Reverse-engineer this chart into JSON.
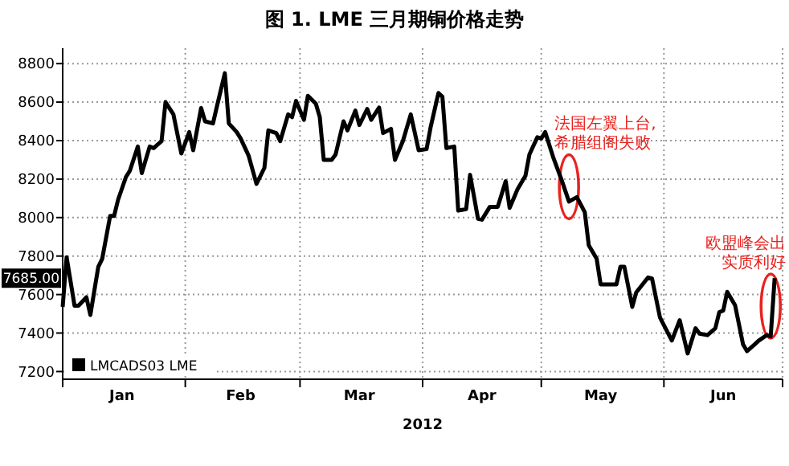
{
  "chart_data": {
    "type": "line",
    "title": "图 1. LME 三月期铜价格走势",
    "xlabel": "2012",
    "xlim": [
      "2012-01-01",
      "2012-07-01"
    ],
    "xticks": [
      {
        "value": "2012-01-01",
        "label": null
      },
      {
        "value": "2012-01-16",
        "label": "Jan"
      },
      {
        "value": "2012-02-01",
        "label": null
      },
      {
        "value": "2012-02-15",
        "label": "Feb"
      },
      {
        "value": "2012-03-01",
        "label": null
      },
      {
        "value": "2012-03-16",
        "label": "Mar"
      },
      {
        "value": "2012-04-01",
        "label": null
      },
      {
        "value": "2012-04-16",
        "label": "Apr"
      },
      {
        "value": "2012-05-01",
        "label": null
      },
      {
        "value": "2012-05-16",
        "label": "May"
      },
      {
        "value": "2012-06-01",
        "label": null
      },
      {
        "value": "2012-06-16",
        "label": "Jun"
      },
      {
        "value": "2012-07-01",
        "label": null
      }
    ],
    "ylim": [
      7160,
      8880
    ],
    "yticks": [
      7200,
      7400,
      7600,
      7800,
      8000,
      8200,
      8400,
      8600,
      8800
    ],
    "grid": true,
    "legend": "bottom left",
    "line_style": "solid",
    "marker": "none",
    "x": [
      "2012-01-01",
      "2012-01-02",
      "2012-01-04",
      "2012-01-05",
      "2012-01-07",
      "2012-01-08",
      "2012-01-10",
      "2012-01-11",
      "2012-01-13",
      "2012-01-14",
      "2012-01-15",
      "2012-01-17",
      "2012-01-18",
      "2012-01-20",
      "2012-01-21",
      "2012-01-23",
      "2012-01-24",
      "2012-01-26",
      "2012-01-27",
      "2012-01-29",
      "2012-01-31",
      "2012-02-02",
      "2012-02-03",
      "2012-02-05",
      "2012-02-06",
      "2012-02-08",
      "2012-02-09",
      "2012-02-11",
      "2012-02-12",
      "2012-02-14",
      "2012-02-15",
      "2012-02-17",
      "2012-02-19",
      "2012-02-21",
      "2012-02-22",
      "2012-02-24",
      "2012-02-25",
      "2012-02-27",
      "2012-02-28",
      "2012-02-29",
      "2012-03-02",
      "2012-03-03",
      "2012-03-05",
      "2012-03-06",
      "2012-03-07",
      "2012-03-09",
      "2012-03-10",
      "2012-03-12",
      "2012-03-13",
      "2012-03-15",
      "2012-03-16",
      "2012-03-18",
      "2012-03-19",
      "2012-03-21",
      "2012-03-22",
      "2012-03-24",
      "2012-03-25",
      "2012-03-27",
      "2012-03-29",
      "2012-03-31",
      "2012-04-02",
      "2012-04-03",
      "2012-04-05",
      "2012-04-06",
      "2012-04-07",
      "2012-04-09",
      "2012-04-10",
      "2012-04-12",
      "2012-04-13",
      "2012-04-15",
      "2012-04-16",
      "2012-04-18",
      "2012-04-20",
      "2012-04-22",
      "2012-04-23",
      "2012-04-25",
      "2012-04-27",
      "2012-04-28",
      "2012-04-30",
      "2012-05-01",
      "2012-05-02",
      "2012-05-04",
      "2012-05-06",
      "2012-05-08",
      "2012-05-10",
      "2012-05-12",
      "2012-05-13",
      "2012-05-15",
      "2012-05-16",
      "2012-05-20",
      "2012-05-21",
      "2012-05-22",
      "2012-05-24",
      "2012-05-25",
      "2012-05-28",
      "2012-05-29",
      "2012-05-31",
      "2012-06-03",
      "2012-06-05",
      "2012-06-07",
      "2012-06-09",
      "2012-06-10",
      "2012-06-12",
      "2012-06-14",
      "2012-06-15",
      "2012-06-16",
      "2012-06-17",
      "2012-06-19",
      "2012-06-21",
      "2012-06-22",
      "2012-06-24",
      "2012-06-25",
      "2012-06-27",
      "2012-06-28",
      "2012-06-29"
    ],
    "series": [
      {
        "name": "LMCADS03 LME",
        "color": "#000000",
        "values": [
          7536,
          7794,
          7542,
          7542,
          7586,
          7494,
          7744,
          7786,
          8008,
          8008,
          8092,
          8211,
          8244,
          8369,
          8231,
          8369,
          8361,
          8397,
          8600,
          8536,
          8333,
          8444,
          8350,
          8569,
          8500,
          8489,
          8578,
          8750,
          8489,
          8444,
          8411,
          8322,
          8175,
          8258,
          8453,
          8439,
          8397,
          8536,
          8522,
          8606,
          8508,
          8633,
          8592,
          8522,
          8300,
          8300,
          8328,
          8500,
          8453,
          8556,
          8481,
          8564,
          8508,
          8572,
          8439,
          8461,
          8300,
          8397,
          8536,
          8350,
          8356,
          8467,
          8647,
          8628,
          8361,
          8369,
          8036,
          8044,
          8222,
          7994,
          7989,
          8056,
          8056,
          8189,
          8050,
          8147,
          8217,
          8328,
          8417,
          8411,
          8444,
          8314,
          8203,
          8083,
          8106,
          8028,
          7856,
          7786,
          7653,
          7653,
          7744,
          7744,
          7536,
          7611,
          7689,
          7683,
          7481,
          7361,
          7467,
          7294,
          7425,
          7397,
          7389,
          7425,
          7508,
          7517,
          7614,
          7544,
          7342,
          7306,
          7342,
          7361,
          7389,
          7383,
          7685
        ]
      }
    ],
    "annotations": [
      {
        "text": "7685.00",
        "y": 7685
      },
      {
        "text": "法国左翼上台,希腊组阁失败",
        "x": "2012-05-08",
        "y": 8160
      },
      {
        "text": "欧盟峰会出实质利好",
        "x": "2012-06-28",
        "y": 7540
      }
    ]
  }
}
